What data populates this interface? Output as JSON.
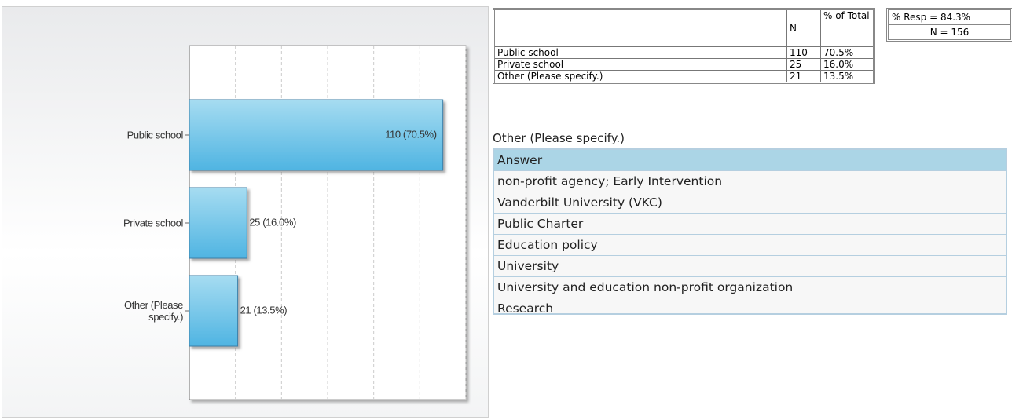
{
  "chart_data": {
    "type": "bar",
    "orientation": "horizontal",
    "categories": [
      "Public school",
      "Private school",
      "Other (Please specify.)"
    ],
    "values": [
      110,
      25,
      21
    ],
    "value_labels": [
      "110 (70.5%)",
      "25 (16.0%)",
      "21 (13.5%)"
    ],
    "color": "#4fb4e2",
    "xlim": [
      0,
      120
    ],
    "xticks": [
      0,
      20,
      40,
      60,
      80,
      100,
      120
    ],
    "grid": true
  },
  "summary_table": {
    "columns": [
      "N",
      "% of Total"
    ],
    "rows": [
      [
        "Public school",
        "110",
        "70.5%"
      ],
      [
        "Private school",
        "25",
        "16.0%"
      ],
      [
        "Other (Please specify.)",
        "21",
        "13.5%"
      ]
    ]
  },
  "response": {
    "rate": "% Resp = 84.3%",
    "n": "N = 156"
  },
  "other_table": {
    "title": "Other (Please specify.)",
    "header": "Answer",
    "rows": [
      "non-profit agency; Early Intervention",
      "Vanderbilt University (VKC)",
      "Public Charter",
      "Education policy",
      "University",
      "University and education non-profit organization",
      "Research"
    ]
  }
}
